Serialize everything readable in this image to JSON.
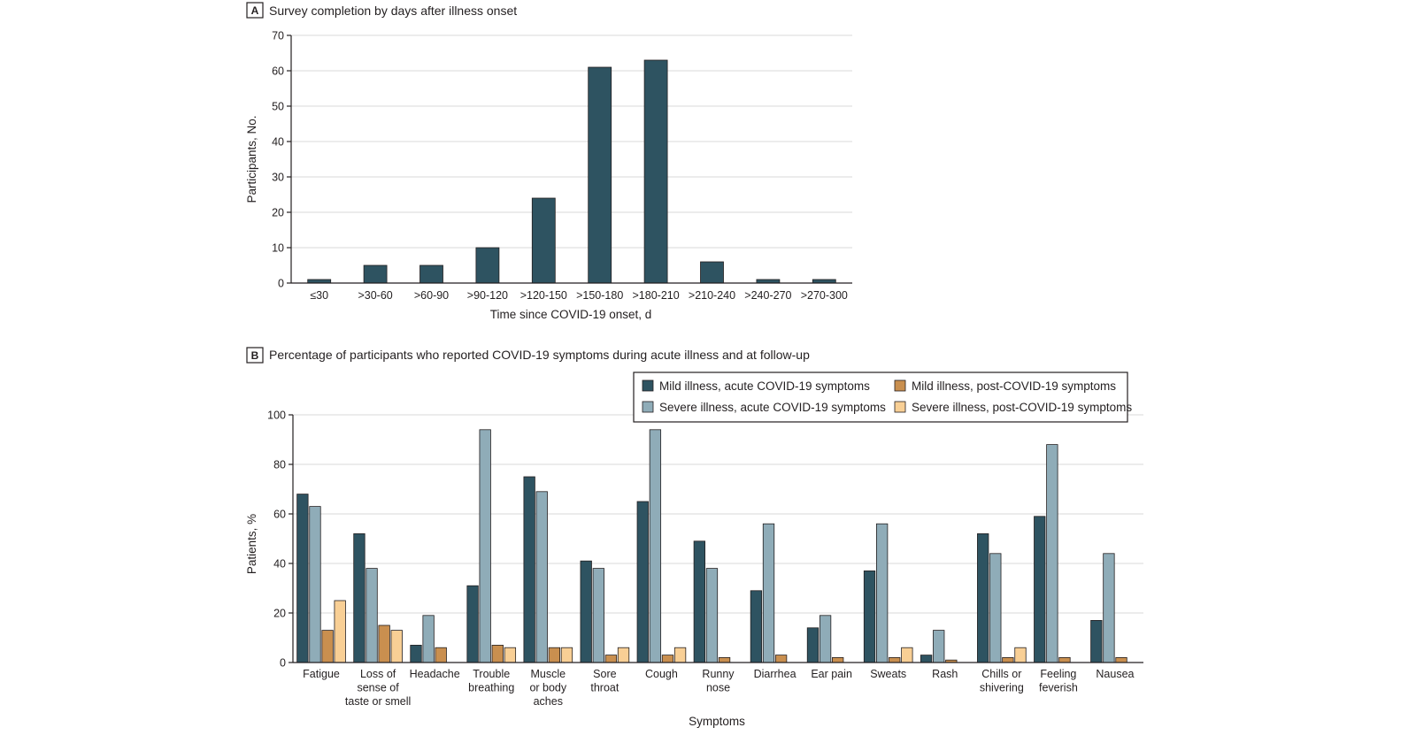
{
  "chart_data": [
    {
      "panel": "A",
      "type": "bar",
      "title": "Survey completion by days after illness onset",
      "xlabel": "Time since COVID-19 onset, d",
      "ylabel": "Participants, No.",
      "ylim": [
        0,
        70
      ],
      "yticks": [
        0,
        10,
        20,
        30,
        40,
        50,
        60,
        70
      ],
      "grid": true,
      "categories": [
        "≤30",
        ">30-60",
        ">60-90",
        ">90-120",
        ">120-150",
        ">150-180",
        ">180-210",
        ">210-240",
        ">240-270",
        ">270-300"
      ],
      "values": [
        1,
        5,
        5,
        10,
        24,
        61,
        63,
        6,
        1,
        1
      ],
      "color": "#2e5361"
    },
    {
      "panel": "B",
      "type": "bar",
      "title": "Percentage of participants who reported COVID-19 symptoms during acute illness and at follow-up",
      "xlabel": "Symptoms",
      "ylabel": "Patients, %",
      "ylim": [
        0,
        100
      ],
      "yticks": [
        0,
        20,
        40,
        60,
        80,
        100
      ],
      "grid": true,
      "legend_position": "top-right",
      "categories": [
        "Fatigue",
        "Loss of sense of taste or smell",
        "Headache",
        "Trouble breathing",
        "Muscle or body aches",
        "Sore throat",
        "Cough",
        "Runny nose",
        "Diarrhea",
        "Ear pain",
        "Sweats",
        "Rash",
        "Chills or shivering",
        "Feeling feverish",
        "Nausea"
      ],
      "category_lines": [
        [
          "Fatigue"
        ],
        [
          "Loss of",
          "sense of",
          "taste or smell"
        ],
        [
          "Headache"
        ],
        [
          "Trouble",
          "breathing"
        ],
        [
          "Muscle",
          "or body",
          "aches"
        ],
        [
          "Sore",
          "throat"
        ],
        [
          "Cough"
        ],
        [
          "Runny",
          "nose"
        ],
        [
          "Diarrhea"
        ],
        [
          "Ear pain"
        ],
        [
          "Sweats"
        ],
        [
          "Rash"
        ],
        [
          "Chills or",
          "shivering"
        ],
        [
          "Feeling",
          "feverish"
        ],
        [
          "Nausea"
        ]
      ],
      "series": [
        {
          "name": "Mild illness, acute COVID-19 symptoms",
          "color": "#2e5361",
          "values": [
            68,
            52,
            7,
            31,
            75,
            41,
            65,
            49,
            29,
            14,
            37,
            3,
            52,
            59,
            17
          ]
        },
        {
          "name": "Severe illness, acute COVID-19 symptoms",
          "color": "#8facb8",
          "values": [
            63,
            38,
            19,
            94,
            69,
            38,
            94,
            38,
            56,
            19,
            56,
            13,
            44,
            88,
            44
          ]
        },
        {
          "name": "Mild illness, post-COVID-19 symptoms",
          "color": "#c98f4f",
          "values": [
            13,
            15,
            6,
            7,
            6,
            3,
            3,
            2,
            3,
            2,
            2,
            1,
            2,
            2,
            2
          ]
        },
        {
          "name": "Severe illness, post-COVID-19 symptoms",
          "color": "#f8cf95",
          "values": [
            25,
            13,
            0,
            6,
            6,
            6,
            6,
            0,
            0,
            0,
            6,
            0,
            6,
            0,
            0
          ]
        }
      ]
    }
  ]
}
